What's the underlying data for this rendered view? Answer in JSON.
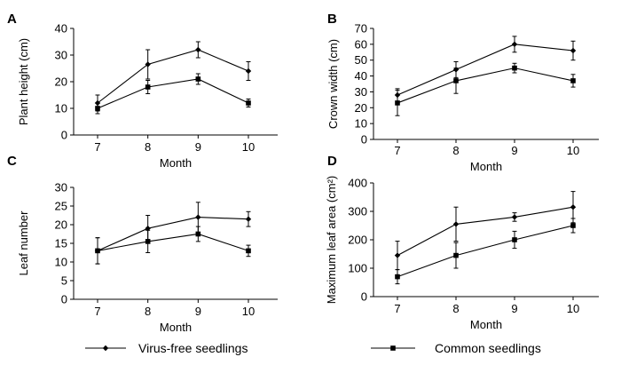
{
  "legend": {
    "virus_free_label": "Virus-free seedlings",
    "common_label": "Common seedlings"
  },
  "colors": {
    "ink": "#000000",
    "background": "#ffffff"
  },
  "markers": {
    "virus_free": "diamond",
    "common": "square"
  },
  "chart_data": [
    {
      "type": "line",
      "panel": "A",
      "ylabel": "Plant height (cm)",
      "xlabel": "Month",
      "categories": [
        "7",
        "8",
        "9",
        "10"
      ],
      "ylim": [
        0,
        40
      ],
      "yticks": [
        "0",
        "10",
        "20",
        "30",
        "40"
      ],
      "grid": false,
      "series": [
        {
          "key": "virus_free",
          "values": [
            12,
            26.5,
            32,
            24
          ],
          "errors": [
            3,
            5.5,
            3,
            3.5
          ]
        },
        {
          "key": "common",
          "values": [
            10,
            18,
            21,
            12
          ],
          "errors": [
            2,
            2.5,
            2,
            1.5
          ]
        }
      ]
    },
    {
      "type": "line",
      "panel": "B",
      "ylabel": "Crown width (cm)",
      "xlabel": "Month",
      "categories": [
        "7",
        "8",
        "9",
        "10"
      ],
      "ylim": [
        0,
        70
      ],
      "yticks": [
        "0",
        "10",
        "20",
        "30",
        "40",
        "50",
        "60",
        "70"
      ],
      "grid": false,
      "series": [
        {
          "key": "virus_free",
          "values": [
            28,
            44,
            60,
            56
          ],
          "errors": [
            4,
            5,
            5,
            6
          ]
        },
        {
          "key": "common",
          "values": [
            23,
            37,
            45,
            37
          ],
          "errors": [
            8,
            8,
            3,
            4
          ]
        }
      ]
    },
    {
      "type": "line",
      "panel": "C",
      "ylabel": "Leaf number",
      "xlabel": "Month",
      "categories": [
        "7",
        "8",
        "9",
        "10"
      ],
      "ylim": [
        0,
        30
      ],
      "yticks": [
        "0",
        "5",
        "10",
        "15",
        "20",
        "25",
        "30"
      ],
      "grid": false,
      "series": [
        {
          "key": "virus_free",
          "values": [
            13,
            19,
            22,
            21.5
          ],
          "errors": [
            3.5,
            3.5,
            4,
            2
          ]
        },
        {
          "key": "common",
          "values": [
            13,
            15.5,
            17.5,
            13
          ],
          "errors": [
            3.5,
            3,
            2,
            1.5
          ]
        }
      ]
    },
    {
      "type": "line",
      "panel": "D",
      "ylabel": "Maximum leaf area (cm²)",
      "xlabel": "Month",
      "categories": [
        "7",
        "8",
        "9",
        "10"
      ],
      "ylim": [
        0,
        400
      ],
      "yticks": [
        "0",
        "100",
        "200",
        "300",
        "400"
      ],
      "grid": false,
      "series": [
        {
          "key": "virus_free",
          "values": [
            145,
            255,
            280,
            315
          ],
          "errors": [
            50,
            60,
            15,
            55
          ]
        },
        {
          "key": "common",
          "values": [
            70,
            145,
            200,
            250
          ],
          "errors": [
            25,
            45,
            30,
            25
          ]
        }
      ]
    }
  ]
}
